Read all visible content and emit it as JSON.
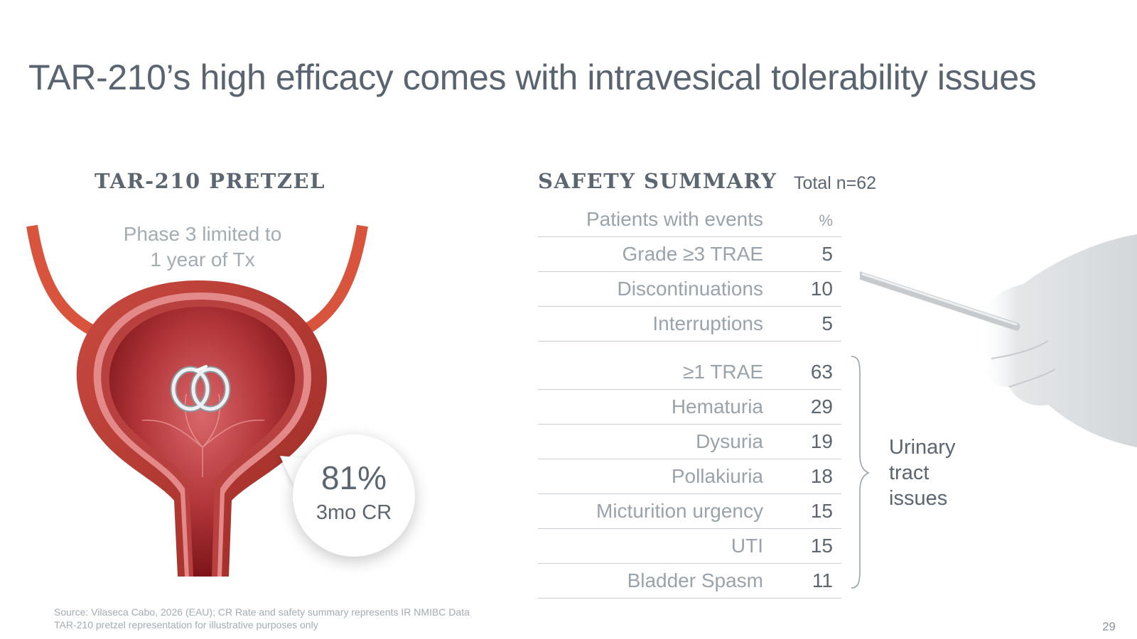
{
  "title": "TAR-210’s high efficacy comes with intravesical tolerability issues",
  "left_panel": {
    "heading": "TAR-210 PRETZEL",
    "phase_note": [
      "Phase 3 limited to",
      "1 year of Tx"
    ],
    "cr_value": "81%",
    "cr_label": "3mo CR"
  },
  "safety": {
    "heading": "SAFETY SUMMARY",
    "total": "Total n=62",
    "header": {
      "label": "Patients with events",
      "unit": "%"
    },
    "rows_group1": [
      {
        "label": "Grade ≥3 TRAE",
        "value": "5"
      },
      {
        "label": "Discontinuations",
        "value": "10"
      },
      {
        "label": "Interruptions",
        "value": "5"
      }
    ],
    "rows_group2": [
      {
        "label": "≥1 TRAE",
        "value": "63"
      },
      {
        "label": "Hematuria",
        "value": "29"
      },
      {
        "label": "Dysuria",
        "value": "19"
      },
      {
        "label": "Pollakiuria",
        "value": "18"
      },
      {
        "label": "Micturition urgency",
        "value": "15"
      },
      {
        "label": "UTI",
        "value": "15"
      },
      {
        "label": "Bladder Spasm",
        "value": "11"
      }
    ],
    "brace_label": [
      "Urinary",
      "tract",
      "issues"
    ]
  },
  "footnotes": [
    "Source: Vilaseca Cabo, 2026 (EAU); CR Rate and safety summary represents IR NMIBC Data",
    "TAR-210 pretzel representation for illustrative purposes only"
  ],
  "page_number": "29",
  "colors": {
    "title": "#5a6470",
    "muted_text": "#9aa3ac",
    "rule": "#c9ced3",
    "bladder_outer": "#c8413a",
    "bladder_inner": "#8e1c1d",
    "ureter": "#d9543c"
  },
  "icons": [
    "bladder-illustration",
    "pretzel-device-icon",
    "hand-holding-device-icon"
  ]
}
